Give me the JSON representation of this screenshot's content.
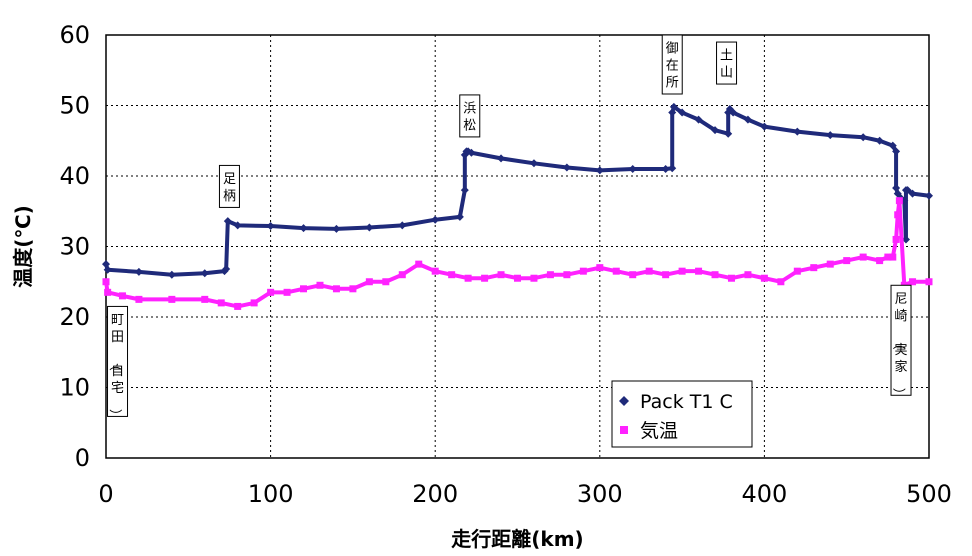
{
  "chart_data": {
    "type": "line",
    "title": "",
    "xlabel": "走行距離(km)",
    "ylabel": "温度(℃)",
    "xlim": [
      0,
      500
    ],
    "ylim": [
      0,
      60
    ],
    "xticks": [
      0,
      100,
      200,
      300,
      400,
      500
    ],
    "yticks": [
      0,
      10,
      20,
      30,
      40,
      50,
      60
    ],
    "grid": true,
    "legend_position": "bottom-right",
    "series": [
      {
        "name": "Pack T1 C",
        "color": "#1f2a7a",
        "marker": "diamond",
        "x": [
          0,
          1,
          20,
          40,
          60,
          72,
          73,
          74,
          80,
          100,
          120,
          140,
          160,
          180,
          200,
          215,
          218,
          218,
          219,
          220,
          222,
          240,
          260,
          280,
          300,
          320,
          340,
          344,
          344,
          345,
          350,
          360,
          370,
          378,
          378,
          379,
          381,
          390,
          400,
          420,
          440,
          460,
          470,
          478,
          480,
          480,
          481,
          485,
          486,
          486,
          487,
          490,
          500
        ],
        "y": [
          27.5,
          26.7,
          26.4,
          26.0,
          26.2,
          26.5,
          26.8,
          33.6,
          33.0,
          32.9,
          32.6,
          32.5,
          32.7,
          33.0,
          33.8,
          34.2,
          38.0,
          43.0,
          43.5,
          43.5,
          43.3,
          42.5,
          41.8,
          41.2,
          40.8,
          41.0,
          41.0,
          41.1,
          49.0,
          49.8,
          49.0,
          48.0,
          46.5,
          46.0,
          49.0,
          49.5,
          49.0,
          48.0,
          47.0,
          46.3,
          45.8,
          45.5,
          45.0,
          44.3,
          43.5,
          38.3,
          37.5,
          36.5,
          31.0,
          38.0,
          38.0,
          37.5,
          37.2
        ]
      },
      {
        "name": "気温",
        "color": "#ff22ff",
        "marker": "square",
        "x": [
          0,
          1,
          10,
          20,
          40,
          60,
          70,
          80,
          90,
          100,
          110,
          120,
          130,
          140,
          150,
          160,
          170,
          180,
          190,
          200,
          210,
          220,
          230,
          240,
          250,
          260,
          270,
          280,
          290,
          300,
          310,
          320,
          330,
          340,
          350,
          360,
          370,
          380,
          390,
          400,
          410,
          420,
          430,
          440,
          450,
          460,
          470,
          475,
          478,
          480,
          481,
          482,
          485,
          490,
          500
        ],
        "y": [
          25.0,
          23.5,
          23.0,
          22.5,
          22.5,
          22.5,
          22.0,
          21.5,
          22.0,
          23.5,
          23.5,
          24.0,
          24.5,
          24.0,
          24.0,
          25.0,
          25.0,
          26.0,
          27.5,
          26.5,
          26.0,
          25.5,
          25.5,
          26.0,
          25.5,
          25.5,
          26.0,
          26.0,
          26.5,
          27.0,
          26.5,
          26.0,
          26.5,
          26.0,
          26.5,
          26.5,
          26.0,
          25.5,
          26.0,
          25.5,
          25.0,
          26.5,
          27.0,
          27.5,
          28.0,
          28.5,
          28.0,
          28.5,
          28.5,
          31.0,
          34.5,
          36.5,
          24.5,
          25.0,
          25.0
        ]
      }
    ],
    "annotations": [
      {
        "text": "町田（自宅）",
        "x": 7,
        "y_top": 21.5,
        "y_bottom": 4
      },
      {
        "text": "足柄",
        "x": 75,
        "y_top": 41.5,
        "y_bottom": 35
      },
      {
        "text": "浜松",
        "x": 221,
        "y_top": 51.5,
        "y_bottom": 45
      },
      {
        "text": "御在所",
        "x": 344,
        "y_top": 60,
        "y_bottom": 51.5
      },
      {
        "text": "土山",
        "x": 377,
        "y_top": 59,
        "y_bottom": 51.5
      },
      {
        "text": "尼崎（実家）",
        "x": 483,
        "y_top": 24.5,
        "y_bottom": 8.5
      }
    ]
  }
}
